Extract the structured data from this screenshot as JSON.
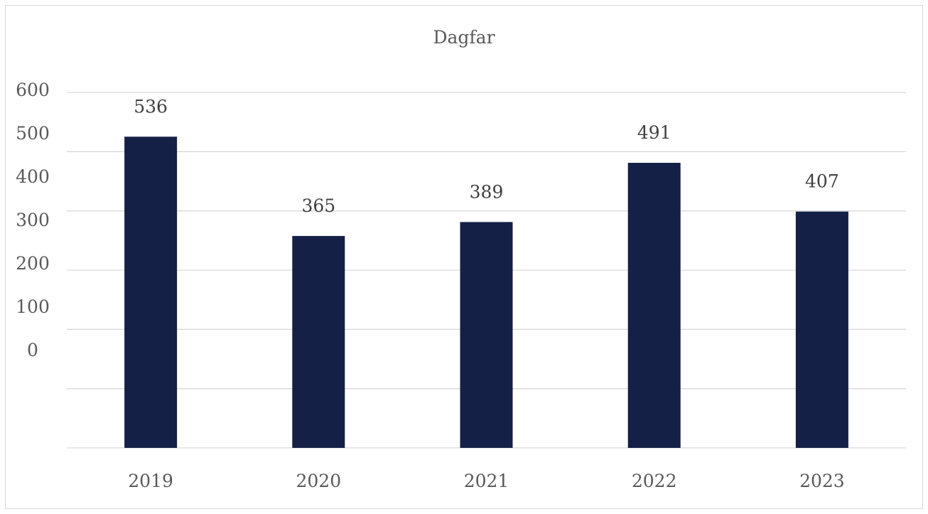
{
  "chart_data": {
    "type": "bar",
    "title": "Dagfar",
    "categories": [
      "2019",
      "2020",
      "2021",
      "2022",
      "2023"
    ],
    "values": [
      536,
      365,
      389,
      491,
      407
    ],
    "y_tick_labels": [
      "600",
      "500",
      "400",
      "300",
      "200",
      "100",
      "0"
    ],
    "ylim": [
      0,
      600
    ],
    "grid": true,
    "legend": "none",
    "xlabel": "",
    "ylabel": "",
    "colors": {
      "bar": "#142045",
      "grid": "#d9d9d9"
    }
  }
}
